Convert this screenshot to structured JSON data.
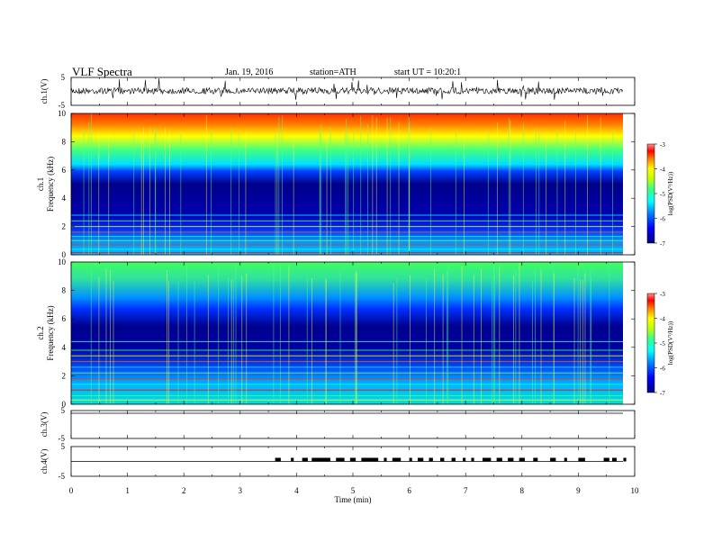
{
  "header": {
    "title": "VLF Spectra",
    "date": "Jan. 19, 2016",
    "station": "station=ATH",
    "start": "start UT = 10:20:1"
  },
  "colors": {
    "colormap": [
      "#000080",
      "#0000ff",
      "#0080ff",
      "#00ffff",
      "#40ff80",
      "#c0ff00",
      "#ffff00",
      "#ff8000",
      "#ff0000",
      "#ff8080"
    ]
  },
  "chart_data": [
    {
      "type": "line",
      "channel": "ch.1",
      "ylabel": "ch.1(V)",
      "ylim": [
        -5,
        5
      ],
      "yticks": [
        "5",
        "-5"
      ],
      "xlim": [
        0,
        10
      ],
      "note": "dense noisy time series around baseline ~ -0.5 V with spikes"
    },
    {
      "type": "heatmap",
      "channel": "ch.1",
      "ylabel": "ch.1 Frequency (kHz)",
      "ylim": [
        0,
        10
      ],
      "yticks": [
        "0",
        "2",
        "4",
        "6",
        "8",
        "10"
      ],
      "xlim": [
        0,
        10
      ],
      "colorbar": {
        "label": "log(PSD(V²/Hz))",
        "range": [
          -7,
          -3
        ],
        "ticks": [
          "-3",
          "-4",
          "-5",
          "-6",
          "-7"
        ]
      },
      "bands_kHz": [
        {
          "from": 0,
          "to": 1.5,
          "level": "mixed lines"
        },
        {
          "from": 1.5,
          "to": 6,
          "level": -6.5
        },
        {
          "from": 6,
          "to": 8,
          "level": -5
        },
        {
          "from": 8,
          "to": 10,
          "level": -3.8
        }
      ]
    },
    {
      "type": "heatmap",
      "channel": "ch.2",
      "ylabel": "ch.2 Frequency (kHz)",
      "ylim": [
        0,
        10
      ],
      "yticks": [
        "0",
        "2",
        "4",
        "6",
        "8",
        "10"
      ],
      "xlim": [
        0,
        10
      ],
      "colorbar": {
        "label": "log(PSD(V²/Hz))",
        "range": [
          -7,
          -3
        ],
        "ticks": [
          "-3",
          "-4",
          "-5",
          "-6",
          "-7"
        ]
      },
      "bands_kHz": [
        {
          "from": 0,
          "to": 2.5,
          "level": "mixed lines"
        },
        {
          "from": 2.5,
          "to": 6.5,
          "level": -6.3
        },
        {
          "from": 6.5,
          "to": 10,
          "level": -5.2
        }
      ]
    },
    {
      "type": "line",
      "channel": "ch.3",
      "ylabel": "ch.3(V)",
      "ylim": [
        -5,
        5
      ],
      "yticks": [
        "5",
        "-5"
      ],
      "xlim": [
        0,
        10
      ],
      "note": "flat line near 5 V"
    },
    {
      "type": "line",
      "channel": "ch.4",
      "ylabel": "ch.4(V)",
      "ylim": [
        -5,
        5
      ],
      "yticks": [
        "5",
        "-5"
      ],
      "xlim": [
        0,
        10
      ],
      "baseline": 0,
      "pulse_intervals_min": [
        [
          3.62,
          3.72
        ],
        [
          3.9,
          3.95
        ],
        [
          4.1,
          4.2
        ],
        [
          4.27,
          4.6
        ],
        [
          4.7,
          4.85
        ],
        [
          4.95,
          5.05
        ],
        [
          5.15,
          5.45
        ],
        [
          5.55,
          5.6
        ],
        [
          5.7,
          5.85
        ],
        [
          6.0,
          6.05
        ],
        [
          6.15,
          6.25
        ],
        [
          6.35,
          6.42
        ],
        [
          6.55,
          6.62
        ],
        [
          6.75,
          6.82
        ],
        [
          6.95,
          7.0
        ],
        [
          7.1,
          7.15
        ],
        [
          7.3,
          7.45
        ],
        [
          7.55,
          7.65
        ],
        [
          7.75,
          7.85
        ],
        [
          7.95,
          8.05
        ],
        [
          8.2,
          8.28
        ],
        [
          8.5,
          8.6
        ],
        [
          8.75,
          8.8
        ],
        [
          9.0,
          9.12
        ],
        [
          9.45,
          9.55
        ],
        [
          9.6,
          9.68
        ],
        [
          9.8,
          9.85
        ]
      ]
    }
  ],
  "xaxis": {
    "label": "Time (min)",
    "ticks": [
      "0",
      "1",
      "2",
      "3",
      "4",
      "5",
      "6",
      "7",
      "8",
      "9",
      "10"
    ]
  }
}
